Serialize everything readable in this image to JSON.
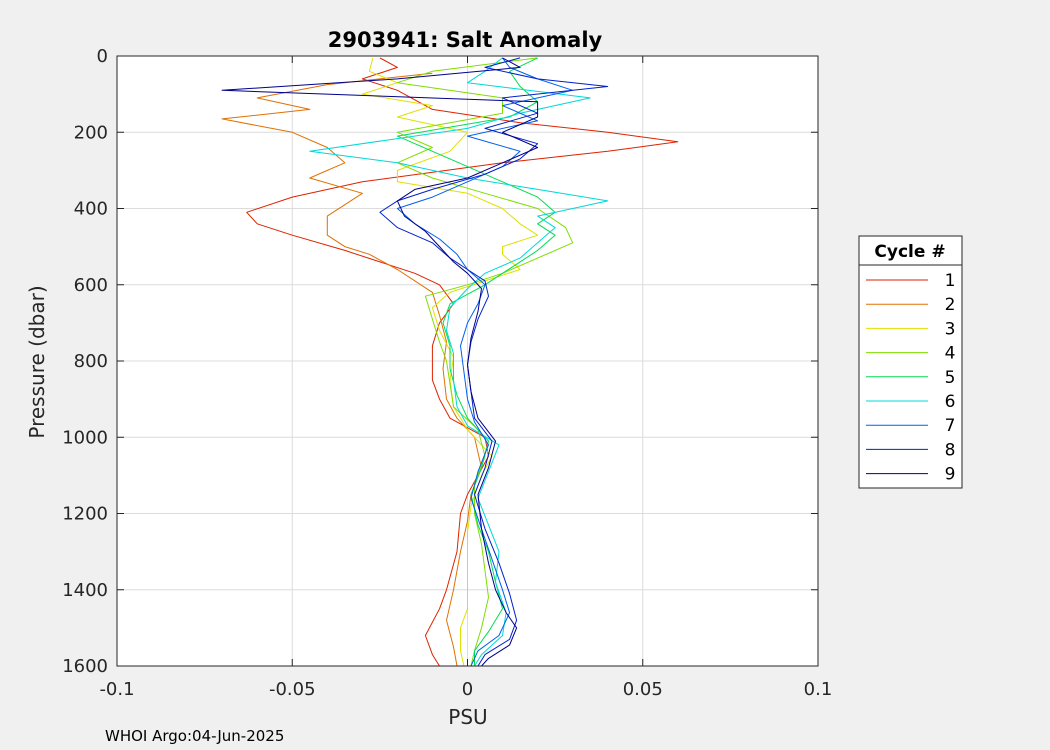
{
  "chart_data": {
    "type": "line",
    "title": "2903941: Salt Anomaly",
    "xlabel": "PSU",
    "ylabel": "Pressure (dbar)",
    "xlim": [
      -0.1,
      0.1
    ],
    "ylim": [
      0,
      1600
    ],
    "y_reversed": true,
    "grid": true,
    "x_ticks": [
      -0.1,
      -0.05,
      0,
      0.05,
      0.1
    ],
    "x_tick_labels": [
      "-0.1",
      "-0.05",
      "0",
      "0.05",
      "0.1"
    ],
    "y_ticks": [
      0,
      200,
      400,
      600,
      800,
      1000,
      1200,
      1400,
      1600
    ],
    "y_tick_labels": [
      "0",
      "200",
      "400",
      "600",
      "800",
      "1000",
      "1200",
      "1400",
      "1600"
    ],
    "legend": {
      "title": "Cycle #",
      "placement": "outside-right"
    },
    "series": [
      {
        "name": "1",
        "color": "#dd2200",
        "points": [
          [
            -0.025,
            5
          ],
          [
            -0.02,
            30
          ],
          [
            -0.03,
            60
          ],
          [
            -0.02,
            90
          ],
          [
            -0.01,
            140
          ],
          [
            0.015,
            175
          ],
          [
            0.04,
            200
          ],
          [
            0.06,
            225
          ],
          [
            0.04,
            250
          ],
          [
            0.01,
            280
          ],
          [
            -0.03,
            330
          ],
          [
            -0.05,
            370
          ],
          [
            -0.063,
            410
          ],
          [
            -0.06,
            440
          ],
          [
            -0.05,
            470
          ],
          [
            -0.035,
            510
          ],
          [
            -0.025,
            540
          ],
          [
            -0.015,
            570
          ],
          [
            -0.008,
            600
          ],
          [
            -0.004,
            650
          ],
          [
            -0.008,
            700
          ],
          [
            -0.01,
            760
          ],
          [
            -0.01,
            800
          ],
          [
            -0.01,
            850
          ],
          [
            -0.008,
            900
          ],
          [
            -0.005,
            950
          ],
          [
            0.005,
            1000
          ],
          [
            0.006,
            1050
          ],
          [
            0.003,
            1100
          ],
          [
            0.0,
            1150
          ],
          [
            -0.002,
            1200
          ],
          [
            -0.003,
            1300
          ],
          [
            -0.006,
            1400
          ],
          [
            -0.008,
            1450
          ],
          [
            -0.012,
            1520
          ],
          [
            -0.01,
            1570
          ],
          [
            -0.008,
            1600
          ]
        ]
      },
      {
        "name": "2",
        "color": "#e07000",
        "points": [
          [
            -0.01,
            45
          ],
          [
            -0.04,
            75
          ],
          [
            -0.06,
            110
          ],
          [
            -0.045,
            140
          ],
          [
            -0.07,
            165
          ],
          [
            -0.05,
            200
          ],
          [
            -0.04,
            240
          ],
          [
            -0.035,
            280
          ],
          [
            -0.045,
            320
          ],
          [
            -0.03,
            360
          ],
          [
            -0.04,
            420
          ],
          [
            -0.04,
            470
          ],
          [
            -0.035,
            500
          ],
          [
            -0.028,
            520
          ],
          [
            -0.02,
            560
          ],
          [
            -0.015,
            590
          ],
          [
            -0.01,
            620
          ],
          [
            -0.008,
            680
          ],
          [
            -0.006,
            750
          ],
          [
            -0.007,
            820
          ],
          [
            -0.006,
            900
          ],
          [
            -0.003,
            950
          ],
          [
            0.002,
            1000
          ],
          [
            0.004,
            1080
          ],
          [
            0.001,
            1150
          ],
          [
            0.0,
            1220
          ],
          [
            -0.002,
            1300
          ],
          [
            -0.004,
            1400
          ],
          [
            -0.006,
            1480
          ],
          [
            -0.004,
            1550
          ],
          [
            -0.003,
            1600
          ]
        ]
      },
      {
        "name": "3",
        "color": "#e0e000",
        "points": [
          [
            -0.027,
            5
          ],
          [
            -0.028,
            40
          ],
          [
            -0.02,
            70
          ],
          [
            -0.03,
            100
          ],
          [
            -0.01,
            130
          ],
          [
            -0.02,
            160
          ],
          [
            0.0,
            200
          ],
          [
            -0.005,
            250
          ],
          [
            -0.02,
            300
          ],
          [
            -0.02,
            330
          ],
          [
            0.0,
            360
          ],
          [
            0.01,
            400
          ],
          [
            0.015,
            440
          ],
          [
            0.02,
            470
          ],
          [
            0.01,
            500
          ],
          [
            0.01,
            520
          ],
          [
            0.015,
            560
          ],
          [
            0.005,
            590
          ],
          [
            -0.005,
            620
          ],
          [
            -0.01,
            660
          ],
          [
            -0.008,
            720
          ],
          [
            -0.004,
            790
          ],
          [
            -0.005,
            850
          ],
          [
            -0.004,
            920
          ],
          [
            0.0,
            980
          ],
          [
            0.007,
            1050
          ],
          [
            0.004,
            1100
          ],
          [
            0.001,
            1180
          ],
          [
            0.0,
            1250
          ],
          [
            0.0,
            1350
          ],
          [
            0.0,
            1450
          ],
          [
            -0.002,
            1500
          ],
          [
            -0.002,
            1560
          ],
          [
            -0.001,
            1600
          ]
        ]
      },
      {
        "name": "4",
        "color": "#80dd00",
        "points": [
          [
            0.02,
            5
          ],
          [
            -0.01,
            40
          ],
          [
            -0.02,
            70
          ],
          [
            0.01,
            110
          ],
          [
            0.01,
            150
          ],
          [
            -0.02,
            200
          ],
          [
            -0.01,
            240
          ],
          [
            -0.02,
            280
          ],
          [
            -0.01,
            320
          ],
          [
            0.005,
            360
          ],
          [
            0.02,
            400
          ],
          [
            0.028,
            450
          ],
          [
            0.03,
            490
          ],
          [
            0.02,
            530
          ],
          [
            0.01,
            570
          ],
          [
            0.0,
            600
          ],
          [
            -0.012,
            630
          ],
          [
            -0.01,
            690
          ],
          [
            -0.008,
            750
          ],
          [
            -0.006,
            800
          ],
          [
            -0.005,
            860
          ],
          [
            -0.004,
            920
          ],
          [
            0.003,
            980
          ],
          [
            0.005,
            1050
          ],
          [
            0.002,
            1120
          ],
          [
            0.002,
            1200
          ],
          [
            0.004,
            1280
          ],
          [
            0.005,
            1350
          ],
          [
            0.006,
            1420
          ],
          [
            0.004,
            1500
          ],
          [
            0.002,
            1560
          ],
          [
            0.001,
            1600
          ]
        ]
      },
      {
        "name": "5",
        "color": "#00dd50",
        "points": [
          [
            0.02,
            5
          ],
          [
            0.012,
            40
          ],
          [
            0.015,
            80
          ],
          [
            0.02,
            120
          ],
          [
            0.012,
            160
          ],
          [
            -0.02,
            210
          ],
          [
            -0.01,
            250
          ],
          [
            0.0,
            290
          ],
          [
            0.01,
            330
          ],
          [
            0.02,
            370
          ],
          [
            0.025,
            410
          ],
          [
            0.02,
            440
          ],
          [
            0.025,
            470
          ],
          [
            0.02,
            510
          ],
          [
            0.015,
            540
          ],
          [
            0.01,
            570
          ],
          [
            0.005,
            600
          ],
          [
            -0.005,
            650
          ],
          [
            -0.007,
            700
          ],
          [
            -0.005,
            760
          ],
          [
            -0.005,
            820
          ],
          [
            -0.003,
            890
          ],
          [
            0.0,
            950
          ],
          [
            0.006,
            1010
          ],
          [
            0.004,
            1080
          ],
          [
            0.001,
            1150
          ],
          [
            0.003,
            1230
          ],
          [
            0.006,
            1300
          ],
          [
            0.008,
            1380
          ],
          [
            0.01,
            1450
          ],
          [
            0.006,
            1510
          ],
          [
            0.002,
            1560
          ],
          [
            0.002,
            1600
          ]
        ]
      },
      {
        "name": "6",
        "color": "#00d8d8",
        "points": [
          [
            0.01,
            5
          ],
          [
            0.005,
            40
          ],
          [
            0.0,
            70
          ],
          [
            0.035,
            110
          ],
          [
            0.015,
            150
          ],
          [
            0.0,
            190
          ],
          [
            -0.045,
            250
          ],
          [
            -0.02,
            280
          ],
          [
            0.0,
            320
          ],
          [
            0.02,
            350
          ],
          [
            0.04,
            380
          ],
          [
            0.02,
            420
          ],
          [
            0.025,
            450
          ],
          [
            0.02,
            490
          ],
          [
            0.015,
            530
          ],
          [
            0.005,
            570
          ],
          [
            0.0,
            610
          ],
          [
            -0.005,
            660
          ],
          [
            -0.006,
            720
          ],
          [
            -0.004,
            780
          ],
          [
            -0.004,
            850
          ],
          [
            -0.003,
            920
          ],
          [
            0.0,
            970
          ],
          [
            0.009,
            1020
          ],
          [
            0.006,
            1090
          ],
          [
            0.003,
            1160
          ],
          [
            0.006,
            1230
          ],
          [
            0.009,
            1300
          ],
          [
            0.008,
            1380
          ],
          [
            0.011,
            1460
          ],
          [
            0.01,
            1520
          ],
          [
            0.004,
            1570
          ],
          [
            0.002,
            1600
          ]
        ]
      },
      {
        "name": "7",
        "color": "#0060ee",
        "points": [
          [
            0.01,
            5
          ],
          [
            0.012,
            30
          ],
          [
            0.02,
            60
          ],
          [
            0.03,
            90
          ],
          [
            0.01,
            130
          ],
          [
            0.02,
            170
          ],
          [
            0.0,
            210
          ],
          [
            0.015,
            250
          ],
          [
            0.01,
            290
          ],
          [
            0.0,
            330
          ],
          [
            -0.01,
            370
          ],
          [
            -0.02,
            400
          ],
          [
            -0.015,
            440
          ],
          [
            -0.008,
            480
          ],
          [
            -0.003,
            520
          ],
          [
            0.0,
            560
          ],
          [
            0.005,
            600
          ],
          [
            0.003,
            650
          ],
          [
            0.0,
            700
          ],
          [
            -0.002,
            760
          ],
          [
            -0.001,
            830
          ],
          [
            0.0,
            900
          ],
          [
            0.002,
            960
          ],
          [
            0.006,
            1020
          ],
          [
            0.003,
            1090
          ],
          [
            0.001,
            1160
          ],
          [
            0.004,
            1240
          ],
          [
            0.007,
            1320
          ],
          [
            0.01,
            1400
          ],
          [
            0.012,
            1460
          ],
          [
            0.009,
            1520
          ],
          [
            0.003,
            1560
          ],
          [
            0.001,
            1600
          ]
        ]
      },
      {
        "name": "8",
        "color": "#0020cc",
        "points": [
          [
            0.015,
            5
          ],
          [
            0.005,
            30
          ],
          [
            0.02,
            60
          ],
          [
            0.04,
            80
          ],
          [
            0.01,
            110
          ],
          [
            0.02,
            150
          ],
          [
            0.005,
            190
          ],
          [
            0.02,
            230
          ],
          [
            0.015,
            270
          ],
          [
            0.005,
            310
          ],
          [
            -0.01,
            350
          ],
          [
            -0.02,
            380
          ],
          [
            -0.025,
            410
          ],
          [
            -0.02,
            450
          ],
          [
            -0.01,
            490
          ],
          [
            -0.005,
            530
          ],
          [
            0.0,
            560
          ],
          [
            0.005,
            590
          ],
          [
            0.006,
            630
          ],
          [
            0.003,
            690
          ],
          [
            0.001,
            750
          ],
          [
            0.0,
            810
          ],
          [
            0.001,
            880
          ],
          [
            0.002,
            950
          ],
          [
            0.007,
            1010
          ],
          [
            0.005,
            1080
          ],
          [
            0.002,
            1150
          ],
          [
            0.005,
            1240
          ],
          [
            0.009,
            1330
          ],
          [
            0.012,
            1410
          ],
          [
            0.014,
            1480
          ],
          [
            0.012,
            1530
          ],
          [
            0.005,
            1570
          ],
          [
            0.003,
            1600
          ]
        ]
      },
      {
        "name": "9",
        "color": "#00008b",
        "points": [
          [
            0.01,
            5
          ],
          [
            0.015,
            30
          ],
          [
            -0.02,
            60
          ],
          [
            -0.07,
            90
          ],
          [
            0.02,
            120
          ],
          [
            0.02,
            160
          ],
          [
            0.01,
            200
          ],
          [
            0.02,
            240
          ],
          [
            0.01,
            280
          ],
          [
            0.0,
            320
          ],
          [
            -0.015,
            350
          ],
          [
            -0.02,
            380
          ],
          [
            -0.018,
            420
          ],
          [
            -0.012,
            460
          ],
          [
            -0.008,
            500
          ],
          [
            -0.004,
            540
          ],
          [
            0.0,
            570
          ],
          [
            0.004,
            610
          ],
          [
            0.003,
            670
          ],
          [
            0.001,
            740
          ],
          [
            0.0,
            810
          ],
          [
            0.001,
            880
          ],
          [
            0.003,
            950
          ],
          [
            0.008,
            1010
          ],
          [
            0.006,
            1080
          ],
          [
            0.003,
            1150
          ],
          [
            0.004,
            1240
          ],
          [
            0.006,
            1330
          ],
          [
            0.008,
            1400
          ],
          [
            0.011,
            1460
          ],
          [
            0.014,
            1500
          ],
          [
            0.012,
            1545
          ],
          [
            0.006,
            1580
          ],
          [
            0.004,
            1600
          ]
        ]
      }
    ]
  },
  "footer": {
    "text": "WHOI Argo:04-Jun-2025"
  }
}
